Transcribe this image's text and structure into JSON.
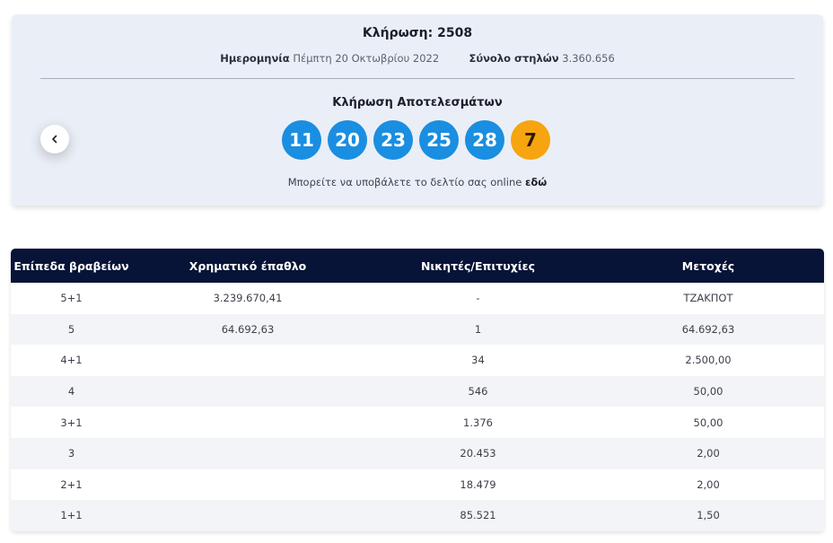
{
  "draw": {
    "title": "Κλήρωση: 2508",
    "date_label": "Ημερομηνία",
    "date_value": "Πέμπτη 20 Οκτωβρίου 2022",
    "columns_label": "Σύνολο στηλών",
    "columns_value": "3.360.656",
    "results_title": "Κλήρωση Αποτελεσμάτων",
    "numbers": [
      "11",
      "20",
      "23",
      "25",
      "28"
    ],
    "bonus_number": "7",
    "online_text": "Μπορείτε να υποβάλετε το δελτίο σας online",
    "online_link": "εδώ",
    "prev_icon": "chevron-left-icon",
    "colors": {
      "ball": "#1a8ee0",
      "bonus_ball": "#f7a411",
      "card_bg": "#eaeff7"
    }
  },
  "table": {
    "headers": [
      "Επίπεδα βραβείων",
      "Χρηματικό έπαθλο",
      "Νικητές/Επιτυχίες",
      "Μετοχές"
    ],
    "header_bg": "#071337",
    "rows": [
      [
        "5+1",
        "3.239.670,41",
        "-",
        "ΤΖΑΚΠΟΤ"
      ],
      [
        "5",
        "64.692,63",
        "1",
        "64.692,63"
      ],
      [
        "4+1",
        "",
        "34",
        "2.500,00"
      ],
      [
        "4",
        "",
        "546",
        "50,00"
      ],
      [
        "3+1",
        "",
        "1.376",
        "50,00"
      ],
      [
        "3",
        "",
        "20.453",
        "2,00"
      ],
      [
        "2+1",
        "",
        "18.479",
        "2,00"
      ],
      [
        "1+1",
        "",
        "85.521",
        "1,50"
      ]
    ]
  }
}
